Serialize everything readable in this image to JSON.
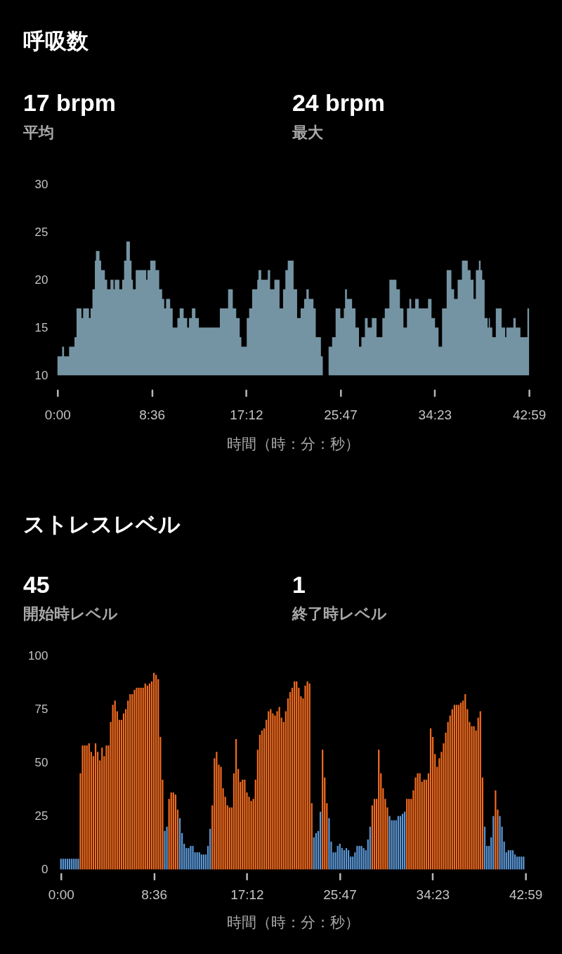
{
  "chart_data": [
    {
      "type": "area",
      "title": "呼吸数",
      "annotations": [
        "17 brpm",
        "平均",
        "24 brpm",
        "最大"
      ],
      "xlabel": "時間（時：分：秒）",
      "color": "#7594a3",
      "x": [
        0,
        0.43,
        0.6,
        1.06,
        1.55,
        1.74,
        2.19,
        2.34,
        2.87,
        3.02,
        3.19,
        3.41,
        3.51,
        3.83,
        3.98,
        4.32,
        4.53,
        4.83,
        5.11,
        5.22,
        5.64,
        5.9,
        6.07,
        6.28,
        6.6,
        6.75,
        6.88,
        7.13,
        8.09,
        8.2,
        8.46,
        8.94,
        9.27,
        9.54,
        9.73,
        9.9,
        10.27,
        10.5,
        10.93,
        11.14,
        11.5,
        11.82,
        11.99,
        12.25,
        12.57,
        12.89,
        14.8,
        15.55,
        15.98,
        16.29,
        16.61,
        16.76,
        17.25,
        17.47,
        17.74,
        18.21,
        18.32,
        18.57,
        19.17,
        19.38,
        19.77,
        20.24,
        20.56,
        20.77,
        20.99,
        21.52,
        21.84,
        22.16,
        22.48,
        22.69,
        22.9,
        23.33,
        23.54,
        24.01,
        24.18,
        24.71,
        25.03,
        25.35,
        25.78,
        26.1,
        26.21,
        26.38,
        26.85,
        27.16,
        27.48,
        27.7,
        28.02,
        28.27,
        28.65,
        29.08,
        29.61,
        29.83,
        30.25,
        30.89,
        31.21,
        31.53,
        31.85,
        32.07,
        32.24,
        32.6,
        32.92,
        33.77,
        34.09,
        34.41,
        34.73,
        35.05,
        35.47,
        35.9,
        36.15,
        36.47,
        36.86,
        37.39,
        37.65,
        37.92,
        38.13,
        38.41,
        38.56,
        38.71,
        38.93,
        39.2,
        39.31,
        39.41,
        39.63,
        39.95,
        40.48,
        40.8,
        40.91,
        41.55,
        41.76,
        42.19,
        42.83,
        42.98
      ],
      "values": [
        12,
        13,
        12,
        13,
        14,
        17,
        16,
        17,
        16,
        17,
        19,
        22,
        23,
        22,
        21,
        20,
        19,
        20,
        19,
        20,
        19,
        20,
        22,
        24,
        22,
        20,
        19,
        21,
        20,
        21,
        22,
        21,
        19,
        18,
        17,
        18,
        17,
        15,
        16,
        17,
        16,
        15,
        16,
        17,
        16,
        15,
        17,
        19,
        17,
        16,
        14,
        13,
        16,
        17,
        19,
        20,
        21,
        20,
        21,
        19,
        20,
        17,
        19,
        21,
        22,
        19,
        16,
        17,
        18,
        19,
        18,
        17,
        14,
        12,
        10,
        13,
        14,
        17,
        16,
        17,
        19,
        18,
        17,
        15,
        13,
        14,
        16,
        15,
        16,
        14,
        16,
        17,
        20,
        19,
        17,
        15,
        17,
        18,
        17,
        18,
        17,
        18,
        16,
        15,
        13,
        17,
        21,
        19,
        18,
        20,
        22,
        21,
        20,
        18,
        21,
        22,
        21,
        20,
        16,
        15,
        16,
        15,
        14,
        17,
        15,
        14,
        15,
        16,
        15,
        14,
        17,
        17
      ],
      "xlim": [
        0,
        42.98
      ],
      "xticks": [
        {
          "value": 0,
          "label": "0:00"
        },
        {
          "value": 8.6,
          "label": "8:36"
        },
        {
          "value": 17.2,
          "label": "17:12"
        },
        {
          "value": 25.78,
          "label": "25:47"
        },
        {
          "value": 34.38,
          "label": "34:23"
        },
        {
          "value": 42.98,
          "label": "42:59"
        }
      ],
      "ylim": [
        10,
        30
      ],
      "yticks": [
        10,
        15,
        20,
        25,
        30
      ]
    },
    {
      "type": "bar",
      "title": "ストレスレベル",
      "annotations": [
        "45",
        "開始時レベル",
        "1",
        "終了時レベル"
      ],
      "xlabel": "時間（時：分：秒）",
      "x": [
        0,
        0.2,
        0.4,
        0.6,
        0.8,
        1,
        1.2,
        1.4,
        1.6,
        1.8,
        2,
        2.2,
        2.4,
        2.6,
        2.8,
        3,
        3.2,
        3.4,
        3.6,
        3.8,
        4,
        4.2,
        4.4,
        4.6,
        4.8,
        5,
        5.2,
        5.4,
        5.6,
        5.8,
        6,
        6.2,
        6.4,
        6.6,
        6.8,
        7,
        7.2,
        7.4,
        7.6,
        7.8,
        8,
        8.2,
        8.4,
        8.6,
        8.8,
        9,
        9.2,
        9.4,
        9.6,
        9.8,
        10,
        10.2,
        10.4,
        10.6,
        10.8,
        11,
        11.2,
        11.4,
        11.6,
        11.8,
        12,
        12.2,
        12.4,
        12.6,
        12.8,
        13,
        13.2,
        13.4,
        13.6,
        13.8,
        14,
        14.2,
        14.4,
        14.6,
        14.8,
        15,
        15.2,
        15.4,
        15.6,
        15.8,
        16,
        16.2,
        16.4,
        16.6,
        16.8,
        17,
        17.2,
        17.4,
        17.6,
        17.8,
        18,
        18.2,
        18.4,
        18.6,
        18.8,
        19,
        19.2,
        19.4,
        19.6,
        19.8,
        20,
        20.2,
        20.4,
        20.6,
        20.8,
        21,
        21.2,
        21.4,
        21.6,
        21.8,
        22,
        22.2,
        22.4,
        22.6,
        22.8,
        23,
        23.2,
        23.4,
        23.6,
        23.8,
        24,
        24.2,
        24.4,
        24.6,
        24.8,
        25,
        25.2,
        25.4,
        25.6,
        25.8,
        26,
        26.2,
        26.4,
        26.6,
        26.8,
        27,
        27.2,
        27.4,
        27.6,
        27.8,
        28,
        28.2,
        28.4,
        28.6,
        28.8,
        29,
        29.2,
        29.4,
        29.6,
        29.8,
        30,
        30.2,
        30.4,
        30.6,
        30.8,
        31,
        31.2,
        31.4,
        31.6,
        31.8,
        32,
        32.2,
        32.4,
        32.6,
        32.8,
        33,
        33.2,
        33.4,
        33.6,
        33.8,
        34,
        34.2,
        34.4,
        34.6,
        34.8,
        35,
        35.2,
        35.4,
        35.6,
        35.8,
        36,
        36.2,
        36.4,
        36.6,
        36.8,
        37,
        37.2,
        37.4,
        37.6,
        37.8,
        38,
        38.2,
        38.4,
        38.6,
        38.8,
        39,
        39.2,
        39.4,
        39.6,
        39.8,
        40,
        40.2,
        40.4,
        40.6,
        40.8,
        41,
        41.2,
        41.4,
        41.6,
        41.8,
        42,
        42.2,
        42.4,
        42.6,
        42.8
      ],
      "values": [
        5,
        5,
        5,
        5,
        5,
        5,
        5,
        5,
        5,
        45,
        58,
        58,
        58,
        59,
        55,
        53,
        59,
        55,
        51,
        57,
        53,
        58,
        58,
        69,
        77,
        79,
        74,
        70,
        70,
        73,
        75,
        79,
        82,
        82,
        84,
        85,
        85,
        85,
        85,
        87,
        86,
        87,
        88,
        92,
        91,
        89,
        62,
        42,
        18,
        20,
        33,
        36,
        36,
        35,
        28,
        24,
        17,
        12,
        10,
        10,
        11,
        11,
        8,
        8,
        8,
        7,
        7,
        7,
        11,
        19,
        30,
        52,
        55,
        49,
        48,
        38,
        34,
        30,
        29,
        29,
        45,
        61,
        47,
        41,
        42,
        42,
        36,
        34,
        32,
        33,
        42,
        56,
        63,
        65,
        66,
        70,
        74,
        75,
        73,
        72,
        74,
        76,
        71,
        69,
        74,
        80,
        83,
        85,
        88,
        88,
        85,
        81,
        80,
        86,
        88,
        87,
        31,
        15,
        17,
        18,
        27,
        56,
        43,
        31,
        24,
        13,
        8,
        8,
        11,
        12,
        10,
        9,
        10,
        9,
        6,
        6,
        8,
        11,
        11,
        11,
        10,
        9,
        14,
        20,
        30,
        33,
        33,
        56,
        45,
        38,
        33,
        29,
        25,
        23,
        23,
        23,
        25,
        25,
        26,
        27,
        33,
        33,
        33,
        37,
        43,
        45,
        45,
        41,
        42,
        42,
        45,
        66,
        62,
        54,
        48,
        52,
        55,
        59,
        64,
        69,
        72,
        75,
        77,
        77,
        77,
        78,
        79,
        82,
        75,
        69,
        67,
        67,
        65,
        71,
        74,
        43,
        20,
        11,
        11,
        15,
        25,
        37,
        28,
        25,
        20,
        13,
        8,
        9,
        9,
        9,
        7,
        6,
        6,
        6,
        6
      ],
      "colors": [
        "#5b98d8",
        "#5b98d8",
        "#5b98d8",
        "#5b98d8",
        "#5b98d8",
        "#5b98d8",
        "#5b98d8",
        "#5b98d8",
        "#5b98d8",
        "#f26b1f",
        "#f26b1f",
        "#f26b1f",
        "#f26b1f",
        "#f26b1f",
        "#f26b1f",
        "#f26b1f",
        "#f26b1f",
        "#f26b1f",
        "#f26b1f",
        "#f26b1f",
        "#f26b1f",
        "#f26b1f",
        "#f26b1f",
        "#f26b1f",
        "#f26b1f",
        "#f26b1f",
        "#f26b1f",
        "#f26b1f",
        "#f26b1f",
        "#f26b1f",
        "#f26b1f",
        "#f26b1f",
        "#f26b1f",
        "#f26b1f",
        "#f26b1f",
        "#f26b1f",
        "#f26b1f",
        "#f26b1f",
        "#f26b1f",
        "#f26b1f",
        "#f26b1f",
        "#f26b1f",
        "#f26b1f",
        "#f26b1f",
        "#f26b1f",
        "#f26b1f",
        "#f26b1f",
        "#f26b1f",
        "#5b98d8",
        "#5b98d8",
        "#f26b1f",
        "#f26b1f",
        "#f26b1f",
        "#f26b1f",
        "#f26b1f",
        "#5b98d8",
        "#5b98d8",
        "#5b98d8",
        "#5b98d8",
        "#5b98d8",
        "#5b98d8",
        "#5b98d8",
        "#5b98d8",
        "#5b98d8",
        "#5b98d8",
        "#5b98d8",
        "#5b98d8",
        "#5b98d8",
        "#5b98d8",
        "#5b98d8",
        "#f26b1f",
        "#f26b1f",
        "#f26b1f",
        "#f26b1f",
        "#f26b1f",
        "#f26b1f",
        "#f26b1f",
        "#f26b1f",
        "#f26b1f",
        "#f26b1f",
        "#f26b1f",
        "#f26b1f",
        "#f26b1f",
        "#f26b1f",
        "#f26b1f",
        "#f26b1f",
        "#f26b1f",
        "#f26b1f",
        "#f26b1f",
        "#f26b1f",
        "#f26b1f",
        "#f26b1f",
        "#f26b1f",
        "#f26b1f",
        "#f26b1f",
        "#f26b1f",
        "#f26b1f",
        "#f26b1f",
        "#f26b1f",
        "#f26b1f",
        "#f26b1f",
        "#f26b1f",
        "#f26b1f",
        "#f26b1f",
        "#f26b1f",
        "#f26b1f",
        "#f26b1f",
        "#f26b1f",
        "#f26b1f",
        "#f26b1f",
        "#f26b1f",
        "#f26b1f",
        "#f26b1f",
        "#f26b1f",
        "#f26b1f",
        "#f26b1f",
        "#f26b1f",
        "#5b98d8",
        "#5b98d8",
        "#5b98d8",
        "#5b98d8",
        "#f26b1f",
        "#f26b1f",
        "#f26b1f",
        "#5b98d8",
        "#5b98d8",
        "#5b98d8",
        "#5b98d8",
        "#5b98d8",
        "#5b98d8",
        "#5b98d8",
        "#5b98d8",
        "#5b98d8",
        "#5b98d8",
        "#5b98d8",
        "#5b98d8",
        "#5b98d8",
        "#5b98d8",
        "#5b98d8",
        "#5b98d8",
        "#5b98d8",
        "#5b98d8",
        "#5b98d8",
        "#5b98d8",
        "#f26b1f",
        "#f26b1f",
        "#f26b1f",
        "#f26b1f",
        "#f26b1f",
        "#f26b1f",
        "#f26b1f",
        "#f26b1f",
        "#5b98d8",
        "#5b98d8",
        "#5b98d8",
        "#5b98d8",
        "#5b98d8",
        "#5b98d8",
        "#5b98d8",
        "#5b98d8",
        "#f26b1f",
        "#f26b1f",
        "#f26b1f",
        "#f26b1f",
        "#f26b1f",
        "#f26b1f",
        "#f26b1f",
        "#f26b1f",
        "#f26b1f",
        "#f26b1f",
        "#f26b1f",
        "#f26b1f",
        "#f26b1f",
        "#f26b1f",
        "#f26b1f",
        "#f26b1f",
        "#f26b1f",
        "#f26b1f",
        "#f26b1f",
        "#f26b1f",
        "#f26b1f",
        "#f26b1f",
        "#f26b1f",
        "#f26b1f",
        "#f26b1f",
        "#f26b1f",
        "#f26b1f",
        "#f26b1f",
        "#f26b1f",
        "#f26b1f",
        "#f26b1f",
        "#f26b1f",
        "#f26b1f",
        "#f26b1f",
        "#f26b1f",
        "#f26b1f",
        "#5b98d8",
        "#5b98d8",
        "#5b98d8",
        "#5b98d8",
        "#5b98d8",
        "#f26b1f",
        "#f26b1f",
        "#5b98d8",
        "#5b98d8",
        "#5b98d8",
        "#5b98d8",
        "#5b98d8",
        "#5b98d8",
        "#5b98d8",
        "#5b98d8",
        "#5b98d8",
        "#5b98d8",
        "#5b98d8",
        "#5b98d8"
      ],
      "xlim": [
        0,
        42.98
      ],
      "xticks": [
        {
          "value": 0,
          "label": "0:00"
        },
        {
          "value": 8.6,
          "label": "8:36"
        },
        {
          "value": 17.2,
          "label": "17:12"
        },
        {
          "value": 25.78,
          "label": "25:47"
        },
        {
          "value": 34.38,
          "label": "34:23"
        },
        {
          "value": 42.98,
          "label": "42:59"
        }
      ],
      "ylim": [
        0,
        100
      ],
      "yticks": [
        0,
        25,
        50,
        75,
        100
      ]
    }
  ]
}
